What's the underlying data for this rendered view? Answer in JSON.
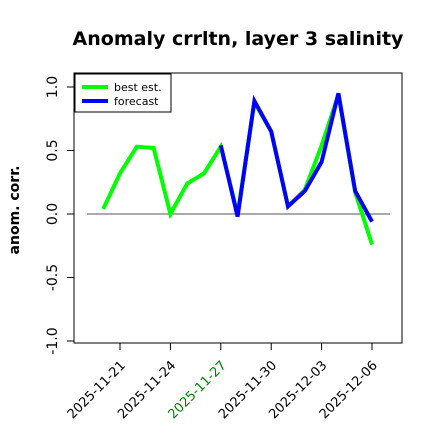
{
  "chart_data": {
    "type": "line",
    "title": "Anomaly crrltn, layer 3 salinity",
    "xlabel": "",
    "ylabel": "anom. corr.",
    "ylim": [
      -1.0,
      1.0
    ],
    "yticks": [
      "-1.0",
      "-0.5",
      "0.0",
      "0.5",
      "1.0"
    ],
    "x": [
      "2025-11-21",
      "2025-11-24",
      "2025-11-27",
      "2025-11-30",
      "2025-12-03",
      "2025-12-06"
    ],
    "xtick_colors": [
      "#000000",
      "#000000",
      "#008000",
      "#000000",
      "#000000",
      "#000000"
    ],
    "grid": false,
    "legend_position": "top-left",
    "reference_line": 0.0,
    "series": [
      {
        "name": "best est.",
        "color": "#00ff00",
        "points": [
          [
            -1.0,
            0.04
          ],
          [
            0.0,
            0.32
          ],
          [
            1.0,
            0.53
          ],
          [
            2.0,
            0.52
          ],
          [
            3.0,
            0.0
          ],
          [
            4.0,
            0.24
          ],
          [
            5.0,
            0.32
          ],
          [
            6.0,
            0.53
          ],
          [
            7.0,
            0.0
          ],
          [
            8.0,
            0.88
          ],
          [
            9.0,
            0.65
          ],
          [
            10.0,
            0.06
          ],
          [
            11.0,
            0.19
          ],
          [
            12.0,
            0.54
          ],
          [
            13.0,
            0.94
          ],
          [
            14.0,
            0.17
          ],
          [
            15.0,
            -0.24
          ]
        ]
      },
      {
        "name": "forecast",
        "color": "#0000ff",
        "points": [
          [
            6.0,
            0.54
          ],
          [
            7.0,
            -0.02
          ],
          [
            8.0,
            0.89
          ],
          [
            9.0,
            0.65
          ],
          [
            10.0,
            0.06
          ],
          [
            11.0,
            0.18
          ],
          [
            12.0,
            0.41
          ],
          [
            13.0,
            0.95
          ],
          [
            14.0,
            0.18
          ],
          [
            15.0,
            -0.06
          ]
        ]
      }
    ]
  }
}
